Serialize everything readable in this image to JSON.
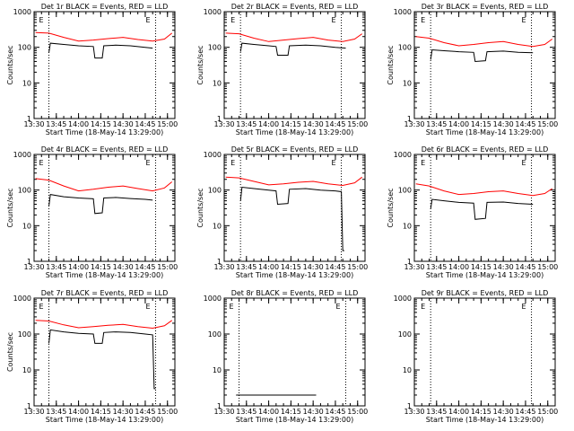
{
  "chart_data": [
    {
      "type": "line",
      "title": "Det 1r BLACK = Events, RED = LLD",
      "xlabel": "Start Time (18-May-14 13:29:00)",
      "ylabel": "Counts/sec",
      "yscale": "log",
      "ylim": [
        1,
        1000
      ],
      "xlim": [
        "13:30",
        "15:05"
      ],
      "x_tick_labels": [
        "13:30",
        "13:45",
        "14:00",
        "14:15",
        "14:30",
        "14:45",
        "15:00"
      ],
      "y_tick_labels": [
        "1",
        "10",
        "100",
        "1000"
      ],
      "markers": [
        {
          "label": "E",
          "x": "13:40"
        },
        {
          "label": "E",
          "x": "14:52"
        }
      ],
      "series": [
        {
          "color": "#ff0000",
          "x": [
            "13:31",
            "13:40",
            "13:50",
            "14:00",
            "14:10",
            "14:20",
            "14:30",
            "14:40",
            "14:50",
            "14:58",
            "15:03"
          ],
          "y": [
            260,
            250,
            190,
            150,
            160,
            175,
            190,
            165,
            150,
            170,
            250
          ]
        },
        {
          "color": "#000000",
          "x": [
            "13:40",
            "13:41",
            "13:50",
            "14:00",
            "14:10",
            "14:11",
            "14:16",
            "14:17",
            "14:25",
            "14:35",
            "14:45",
            "14:50"
          ],
          "y": [
            70,
            130,
            120,
            110,
            105,
            50,
            50,
            110,
            115,
            110,
            100,
            95
          ]
        }
      ]
    },
    {
      "type": "line",
      "title": "Det 2r BLACK = Events, RED = LLD",
      "xlabel": "Start Time (18-May-14 13:29:00)",
      "ylabel": "Counts/sec",
      "yscale": "log",
      "ylim": [
        1,
        1000
      ],
      "xlim": [
        "13:30",
        "15:05"
      ],
      "x_tick_labels": [
        "13:30",
        "13:45",
        "14:00",
        "14:15",
        "14:30",
        "14:45",
        "15:00"
      ],
      "y_tick_labels": [
        "1",
        "10",
        "100",
        "1000"
      ],
      "markers": [
        {
          "label": "E",
          "x": "13:41"
        },
        {
          "label": "E",
          "x": "14:49"
        }
      ],
      "series": [
        {
          "color": "#ff0000",
          "x": [
            "13:31",
            "13:40",
            "13:50",
            "14:00",
            "14:10",
            "14:20",
            "14:30",
            "14:40",
            "14:50",
            "14:58",
            "15:03"
          ],
          "y": [
            250,
            240,
            180,
            145,
            160,
            175,
            190,
            160,
            145,
            170,
            240
          ]
        },
        {
          "color": "#000000",
          "x": [
            "13:41",
            "13:42",
            "13:50",
            "14:00",
            "14:05",
            "14:06",
            "14:13",
            "14:14",
            "14:25",
            "14:35",
            "14:45",
            "14:52"
          ],
          "y": [
            75,
            130,
            120,
            110,
            105,
            60,
            60,
            110,
            115,
            110,
            100,
            95
          ]
        }
      ]
    },
    {
      "type": "line",
      "title": "Det 3r BLACK = Events, RED = LLD",
      "xlabel": "Start Time (18-May-14 13:29:00)",
      "ylabel": "Counts/sec",
      "yscale": "log",
      "ylim": [
        1,
        1000
      ],
      "xlim": [
        "13:30",
        "15:05"
      ],
      "x_tick_labels": [
        "13:30",
        "13:45",
        "14:00",
        "14:15",
        "14:30",
        "14:45",
        "15:00"
      ],
      "y_tick_labels": [
        "1",
        "10",
        "100",
        "1000"
      ],
      "markers": [
        {
          "label": "E",
          "x": "13:41"
        },
        {
          "label": "E",
          "x": "14:49"
        }
      ],
      "series": [
        {
          "color": "#ff0000",
          "x": [
            "13:31",
            "13:40",
            "13:50",
            "14:00",
            "14:10",
            "14:20",
            "14:30",
            "14:40",
            "14:50",
            "14:58",
            "15:03"
          ],
          "y": [
            200,
            180,
            135,
            110,
            120,
            135,
            145,
            120,
            105,
            120,
            170
          ]
        },
        {
          "color": "#000000",
          "x": [
            "13:41",
            "13:42",
            "13:50",
            "14:00",
            "14:10",
            "14:11",
            "14:18",
            "14:19",
            "14:30",
            "14:40",
            "14:50"
          ],
          "y": [
            45,
            85,
            80,
            75,
            72,
            40,
            42,
            75,
            78,
            72,
            70
          ]
        }
      ]
    },
    {
      "type": "line",
      "title": "Det 4r BLACK = Events, RED = LLD",
      "xlabel": "Start Time (18-May-14 13:29:00)",
      "ylabel": "Counts/sec",
      "yscale": "log",
      "ylim": [
        1,
        1000
      ],
      "xlim": [
        "13:30",
        "15:05"
      ],
      "x_tick_labels": [
        "13:30",
        "13:45",
        "14:00",
        "14:15",
        "14:30",
        "14:45",
        "15:00"
      ],
      "y_tick_labels": [
        "1",
        "10",
        "100",
        "1000"
      ],
      "markers": [
        {
          "label": "E",
          "x": "13:40"
        },
        {
          "label": "E",
          "x": "14:52"
        }
      ],
      "series": [
        {
          "color": "#ff0000",
          "x": [
            "13:31",
            "13:40",
            "13:50",
            "14:00",
            "14:10",
            "14:20",
            "14:30",
            "14:40",
            "14:50",
            "14:58",
            "15:03"
          ],
          "y": [
            210,
            190,
            130,
            95,
            105,
            120,
            130,
            110,
            95,
            115,
            170
          ]
        },
        {
          "color": "#000000",
          "x": [
            "13:40",
            "13:41",
            "13:50",
            "14:00",
            "14:10",
            "14:11",
            "14:16",
            "14:17",
            "14:25",
            "14:35",
            "14:45",
            "14:50"
          ],
          "y": [
            35,
            75,
            65,
            60,
            57,
            22,
            23,
            60,
            62,
            58,
            55,
            52
          ]
        }
      ]
    },
    {
      "type": "line",
      "title": "Det 5r BLACK = Events, RED = LLD",
      "xlabel": "Start Time (18-May-14 13:29:00)",
      "ylabel": "Counts/sec",
      "yscale": "log",
      "ylim": [
        1,
        1000
      ],
      "xlim": [
        "13:30",
        "15:05"
      ],
      "x_tick_labels": [
        "13:30",
        "13:45",
        "14:00",
        "14:15",
        "14:30",
        "14:45",
        "15:00"
      ],
      "y_tick_labels": [
        "1",
        "10",
        "100",
        "1000"
      ],
      "markers": [
        {
          "label": "E",
          "x": "13:41"
        },
        {
          "label": "E",
          "x": "14:49"
        }
      ],
      "series": [
        {
          "color": "#ff0000",
          "x": [
            "13:31",
            "13:40",
            "13:50",
            "14:00",
            "14:10",
            "14:20",
            "14:30",
            "14:40",
            "14:50",
            "14:58",
            "15:03"
          ],
          "y": [
            230,
            220,
            175,
            140,
            150,
            165,
            175,
            150,
            135,
            160,
            230
          ]
        },
        {
          "color": "#000000",
          "x": [
            "13:41",
            "13:42",
            "13:50",
            "14:00",
            "14:05",
            "14:06",
            "14:13",
            "14:14",
            "14:25",
            "14:35",
            "14:45",
            "14:49",
            "14:50",
            "14:51"
          ],
          "y": [
            50,
            120,
            110,
            100,
            95,
            40,
            42,
            105,
            110,
            100,
            95,
            90,
            2,
            2
          ]
        }
      ]
    },
    {
      "type": "line",
      "title": "Det 6r BLACK = Events, RED = LLD",
      "xlabel": "Start Time (18-May-14 13:29:00)",
      "ylabel": "Counts/sec",
      "yscale": "log",
      "ylim": [
        1,
        1000
      ],
      "xlim": [
        "13:30",
        "15:05"
      ],
      "x_tick_labels": [
        "13:30",
        "13:45",
        "14:00",
        "14:15",
        "14:30",
        "14:45",
        "15:00"
      ],
      "y_tick_labels": [
        "1",
        "10",
        "100",
        "1000"
      ],
      "markers": [
        {
          "label": "E",
          "x": "13:41"
        },
        {
          "label": "E",
          "x": "14:49"
        }
      ],
      "series": [
        {
          "color": "#ff0000",
          "x": [
            "13:31",
            "13:40",
            "13:50",
            "14:00",
            "14:10",
            "14:20",
            "14:30",
            "14:40",
            "14:50",
            "14:58",
            "15:03"
          ],
          "y": [
            150,
            130,
            95,
            75,
            80,
            90,
            95,
            80,
            70,
            80,
            110
          ]
        },
        {
          "color": "#000000",
          "x": [
            "13:41",
            "13:42",
            "13:50",
            "14:00",
            "14:10",
            "14:11",
            "14:18",
            "14:19",
            "14:30",
            "14:40",
            "14:50"
          ],
          "y": [
            30,
            55,
            50,
            45,
            43,
            15,
            16,
            45,
            46,
            42,
            40
          ]
        }
      ]
    },
    {
      "type": "line",
      "title": "Det 7r BLACK = Events, RED = LLD",
      "xlabel": "Start Time (18-May-14 13:29:00)",
      "ylabel": "Counts/sec",
      "yscale": "log",
      "ylim": [
        1,
        1000
      ],
      "xlim": [
        "13:30",
        "15:05"
      ],
      "x_tick_labels": [
        "13:30",
        "13:45",
        "14:00",
        "14:15",
        "14:30",
        "14:45",
        "15:00"
      ],
      "y_tick_labels": [
        "1",
        "10",
        "100",
        "1000"
      ],
      "markers": [
        {
          "label": "E",
          "x": "13:40"
        },
        {
          "label": "E",
          "x": "14:52"
        }
      ],
      "series": [
        {
          "color": "#ff0000",
          "x": [
            "13:31",
            "13:40",
            "13:50",
            "14:00",
            "14:10",
            "14:20",
            "14:30",
            "14:40",
            "14:50",
            "14:58",
            "15:03"
          ],
          "y": [
            240,
            230,
            180,
            150,
            160,
            175,
            185,
            160,
            145,
            170,
            240
          ]
        },
        {
          "color": "#000000",
          "x": [
            "13:40",
            "13:41",
            "13:50",
            "14:00",
            "14:10",
            "14:11",
            "14:16",
            "14:17",
            "14:25",
            "14:35",
            "14:45",
            "14:50",
            "14:51",
            "14:52"
          ],
          "y": [
            55,
            130,
            115,
            105,
            100,
            55,
            55,
            110,
            115,
            110,
            100,
            95,
            3,
            3
          ]
        }
      ]
    },
    {
      "type": "line",
      "title": "Det 8r BLACK = Events, RED = LLD",
      "xlabel": "Start Time (18-May-14 13:29:00)",
      "ylabel": "",
      "yscale": "log",
      "ylim": [
        1,
        1000
      ],
      "xlim": [
        "13:30",
        "15:05"
      ],
      "x_tick_labels": [
        "13:30",
        "13:45",
        "14:00",
        "14:15",
        "14:30",
        "14:45",
        "15:00"
      ],
      "y_tick_labels": [
        "1",
        "10",
        "100",
        "1000"
      ],
      "markers": [
        {
          "label": "E",
          "x": "13:40"
        },
        {
          "label": "E",
          "x": "14:52"
        }
      ],
      "series": [
        {
          "color": "#000000",
          "x": [
            "13:38",
            "13:39",
            "13:40",
            "13:41",
            "14:27",
            "14:28",
            "14:29",
            "14:30",
            "14:31",
            "14:32"
          ],
          "y": [
            2,
            2,
            2,
            2,
            2,
            2,
            2,
            2,
            2,
            2
          ]
        }
      ]
    },
    {
      "type": "line",
      "title": "Det 9r BLACK = Events, RED = LLD",
      "xlabel": "Start Time (18-May-14 13:29:00)",
      "ylabel": "",
      "yscale": "log",
      "ylim": [
        1,
        1000
      ],
      "xlim": [
        "13:30",
        "15:05"
      ],
      "x_tick_labels": [
        "13:30",
        "13:45",
        "14:00",
        "14:15",
        "14:30",
        "14:45",
        "15:00"
      ],
      "y_tick_labels": [
        "1",
        "10",
        "100",
        "1000"
      ],
      "markers": [
        {
          "label": "E",
          "x": "13:41"
        },
        {
          "label": "E",
          "x": "14:49"
        }
      ],
      "series": []
    }
  ]
}
